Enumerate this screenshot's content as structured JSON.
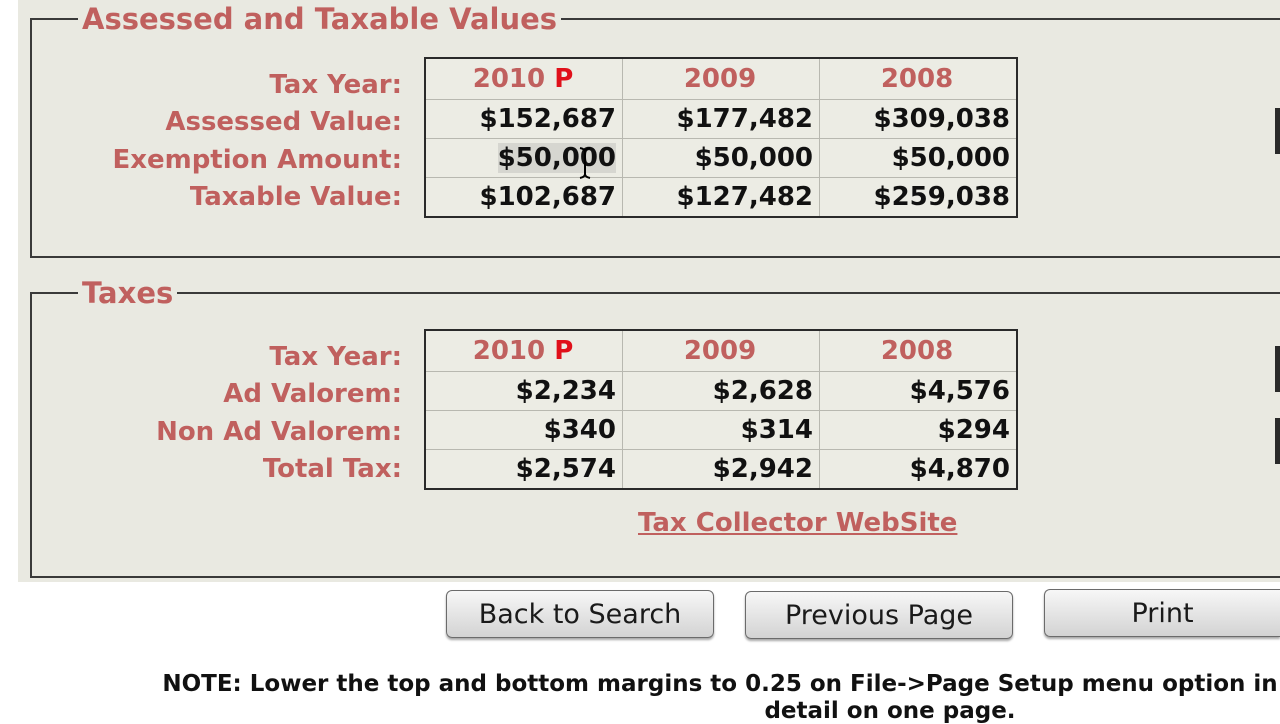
{
  "values_section": {
    "title": "Assessed and Taxable Values",
    "labels": {
      "tax_year": "Tax Year:",
      "assessed_value": "Assessed Value:",
      "exemption_amount": "Exemption Amount:",
      "taxable_value": "Taxable Value:"
    },
    "years": [
      {
        "year": "2010",
        "flag": "P"
      },
      {
        "year": "2009",
        "flag": ""
      },
      {
        "year": "2008",
        "flag": ""
      }
    ],
    "assessed_value": [
      "$152,687",
      "$177,482",
      "$309,038"
    ],
    "exemption_amount": [
      "$50,000",
      "$50,000",
      "$50,000"
    ],
    "taxable_value": [
      "$102,687",
      "$127,482",
      "$259,038"
    ]
  },
  "taxes_section": {
    "title": "Taxes",
    "labels": {
      "tax_year": "Tax Year:",
      "ad_valorem": "Ad Valorem:",
      "non_ad_valorem": "Non Ad Valorem:",
      "total_tax": "Total Tax:"
    },
    "years": [
      {
        "year": "2010",
        "flag": "P"
      },
      {
        "year": "2009",
        "flag": ""
      },
      {
        "year": "2008",
        "flag": ""
      }
    ],
    "ad_valorem": [
      "$2,234",
      "$2,628",
      "$4,576"
    ],
    "non_ad_valorem": [
      "$340",
      "$314",
      "$294"
    ],
    "total_tax": [
      "$2,574",
      "$2,942",
      "$4,870"
    ],
    "link": "Tax Collector WebSite"
  },
  "buttons": {
    "back": "Back to Search",
    "previous": "Previous Page",
    "print": "Print"
  },
  "note": {
    "line1": "NOTE: Lower the top and bottom margins to 0.25 on File->Page Setup menu option in",
    "line2": "detail on one page."
  },
  "colors": {
    "label": "#c0605e",
    "flag": "#e0101a",
    "panel_bg": "#e9e9e1"
  }
}
